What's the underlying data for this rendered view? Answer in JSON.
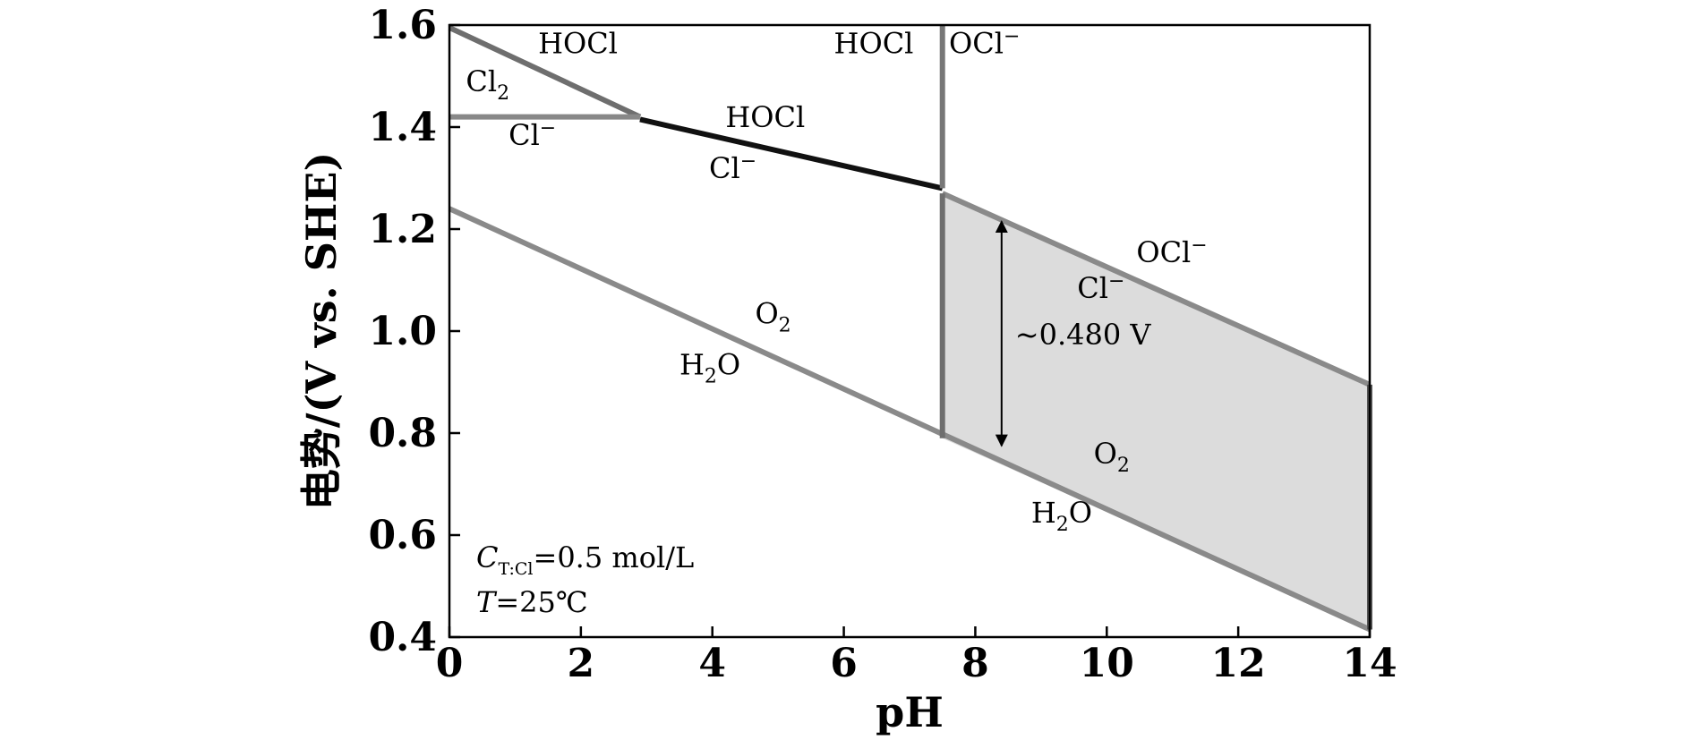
{
  "chart_data": {
    "type": "line",
    "xlabel": "pH",
    "ylabel": "电势/(V vs. SHE)",
    "xlim": [
      0,
      14
    ],
    "ylim": [
      0.4,
      1.6
    ],
    "x_ticks": [
      "0",
      "2",
      "4",
      "6",
      "8",
      "10",
      "12",
      "14"
    ],
    "y_ticks": [
      "0.4",
      "0.6",
      "0.8",
      "1.0",
      "1.2",
      "1.4",
      "1.6"
    ],
    "grid": false,
    "lines": [
      {
        "id": "cl2-hocl",
        "color": "#6e6e6e",
        "x": [
          0,
          2.9
        ],
        "y": [
          1.595,
          1.42
        ]
      },
      {
        "id": "cl2-cl",
        "color": "#888888",
        "x": [
          0,
          2.9
        ],
        "y": [
          1.42,
          1.42
        ]
      },
      {
        "id": "hocl-cl",
        "color": "#111111",
        "x": [
          2.9,
          7.5
        ],
        "y": [
          1.415,
          1.28
        ]
      },
      {
        "id": "hocl-ocl-boundary",
        "color": "#777777",
        "x": [
          7.5,
          7.5
        ],
        "y": [
          1.6,
          1.28
        ]
      },
      {
        "id": "ocl-cl",
        "color": "#8a8a8a",
        "x": [
          7.5,
          14
        ],
        "y": [
          1.27,
          0.895
        ]
      },
      {
        "id": "o2-h2o",
        "color": "#8a8a8a",
        "x": [
          0,
          14
        ],
        "y": [
          1.24,
          0.415
        ]
      },
      {
        "id": "window-left-edge",
        "color": "#6e6e6e",
        "x": [
          7.5,
          7.5
        ],
        "y": [
          1.27,
          0.79
        ]
      },
      {
        "id": "window-right-edge",
        "color": "#555555",
        "x": [
          14,
          14
        ],
        "y": [
          0.895,
          0.415
        ]
      }
    ],
    "shaded_region": {
      "color": "#dcdcdc",
      "x": [
        7.5,
        14,
        14,
        7.5
      ],
      "y": [
        1.27,
        0.895,
        0.415,
        0.79
      ]
    },
    "arrow": {
      "x": 8.4,
      "y_from": 1.215,
      "y_to": 0.775,
      "label": "~0.480 V"
    },
    "species_labels": [
      {
        "main": "HOCl",
        "sub": "",
        "sup": "",
        "x": 1.35,
        "y": 1.545
      },
      {
        "main": "Cl",
        "sub": "2",
        "sup": "",
        "x": 0.25,
        "y": 1.47
      },
      {
        "main": "Cl",
        "sub": "",
        "sup": "−",
        "x": 0.9,
        "y": 1.365
      },
      {
        "main": "HOCl",
        "sub": "",
        "sup": "",
        "x": 4.2,
        "y": 1.4
      },
      {
        "main": "Cl",
        "sub": "",
        "sup": "−",
        "x": 3.95,
        "y": 1.3
      },
      {
        "main": "HOCl",
        "sub": "",
        "sup": "",
        "x": 5.85,
        "y": 1.545
      },
      {
        "main": "OCl",
        "sub": "",
        "sup": "−",
        "x": 7.6,
        "y": 1.545
      },
      {
        "main": "OCl",
        "sub": "",
        "sup": "−",
        "x": 10.45,
        "y": 1.135
      },
      {
        "main": "Cl",
        "sub": "",
        "sup": "−",
        "x": 9.55,
        "y": 1.065
      },
      {
        "main": "O",
        "sub": "2",
        "sup": "",
        "x": 4.65,
        "y": 1.015
      },
      {
        "main": "H",
        "sub": "2",
        "sup": "O",
        "x": 3.5,
        "y": 0.915
      },
      {
        "main": "O",
        "sub": "2",
        "sup": "",
        "x": 9.8,
        "y": 0.74
      },
      {
        "main": "H",
        "sub": "2",
        "sup": "O",
        "x": 8.85,
        "y": 0.625
      }
    ],
    "conditions": [
      {
        "main": "C",
        "sub": "T:Cl",
        "rest": "=0.5 mol/L"
      },
      {
        "main": "T",
        "sub": "",
        "rest": "=25℃"
      }
    ]
  }
}
